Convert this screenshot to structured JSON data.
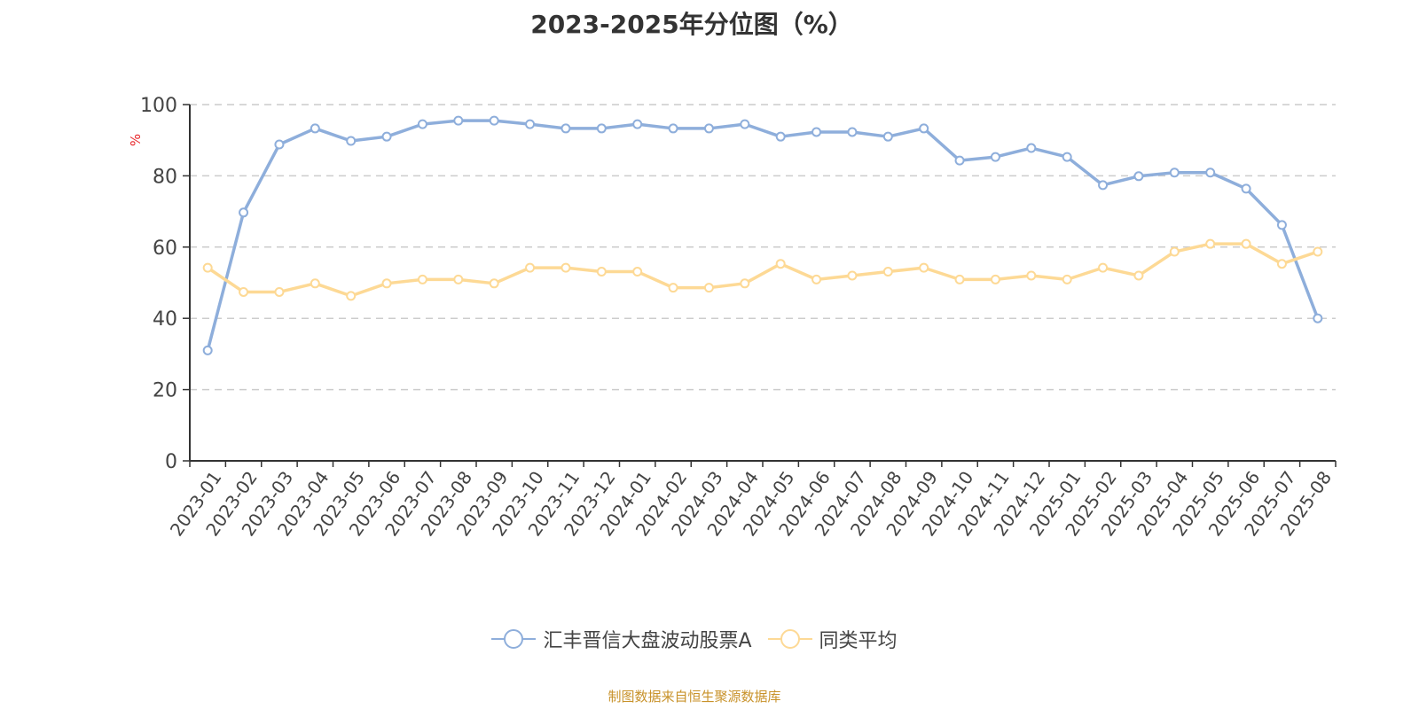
{
  "title": "2023-2025年分位图（%）",
  "footer": "制图数据来自恒生聚源数据库",
  "y_axis_unit": "%",
  "legend": [
    {
      "label": "汇丰晋信大盘波动股票A",
      "color": "#8eaedb"
    },
    {
      "label": "同类平均",
      "color": "#fdd995"
    }
  ],
  "colors": {
    "series_fund": "#8eaedb",
    "series_avg": "#fdd995",
    "axis": "#333333",
    "grid": "#cccccc",
    "unit_label": "#e8262a",
    "footer": "#c8922a"
  },
  "chart_data": {
    "type": "line",
    "title": "2023-2025年分位图（%）",
    "xlabel": "",
    "ylabel": "%",
    "ylim": [
      0,
      100
    ],
    "yticks": [
      0,
      20,
      40,
      60,
      80,
      100
    ],
    "grid": true,
    "legend_position": "bottom",
    "categories": [
      "2023-01",
      "2023-02",
      "2023-03",
      "2023-04",
      "2023-05",
      "2023-06",
      "2023-07",
      "2023-08",
      "2023-09",
      "2023-10",
      "2023-11",
      "2023-12",
      "2024-01",
      "2024-02",
      "2024-03",
      "2024-04",
      "2024-05",
      "2024-06",
      "2024-07",
      "2024-08",
      "2024-09",
      "2024-10",
      "2024-11",
      "2024-12",
      "2025-01",
      "2025-02",
      "2025-03",
      "2025-04",
      "2025-05",
      "2025-06",
      "2025-07",
      "2025-08"
    ],
    "series": [
      {
        "name": "汇丰晋信大盘波动股票A",
        "color": "#8eaedb",
        "values": [
          31.0,
          69.7,
          88.8,
          93.3,
          89.8,
          91.0,
          94.5,
          95.5,
          95.5,
          94.5,
          93.3,
          93.3,
          94.5,
          93.3,
          93.3,
          94.5,
          91.0,
          92.3,
          92.3,
          91.0,
          93.3,
          84.3,
          85.3,
          87.8,
          85.3,
          77.4,
          79.9,
          80.9,
          80.9,
          76.4,
          66.2,
          40.0
        ]
      },
      {
        "name": "同类平均",
        "color": "#fdd995",
        "values": [
          54.2,
          47.4,
          47.4,
          49.8,
          46.3,
          49.8,
          50.9,
          50.9,
          49.8,
          54.2,
          54.2,
          53.1,
          53.1,
          48.6,
          48.6,
          49.8,
          55.3,
          50.9,
          52.0,
          53.1,
          54.2,
          50.9,
          50.9,
          52.0,
          50.9,
          54.2,
          52.0,
          58.7,
          60.9,
          60.9,
          55.3,
          58.7
        ]
      }
    ]
  }
}
